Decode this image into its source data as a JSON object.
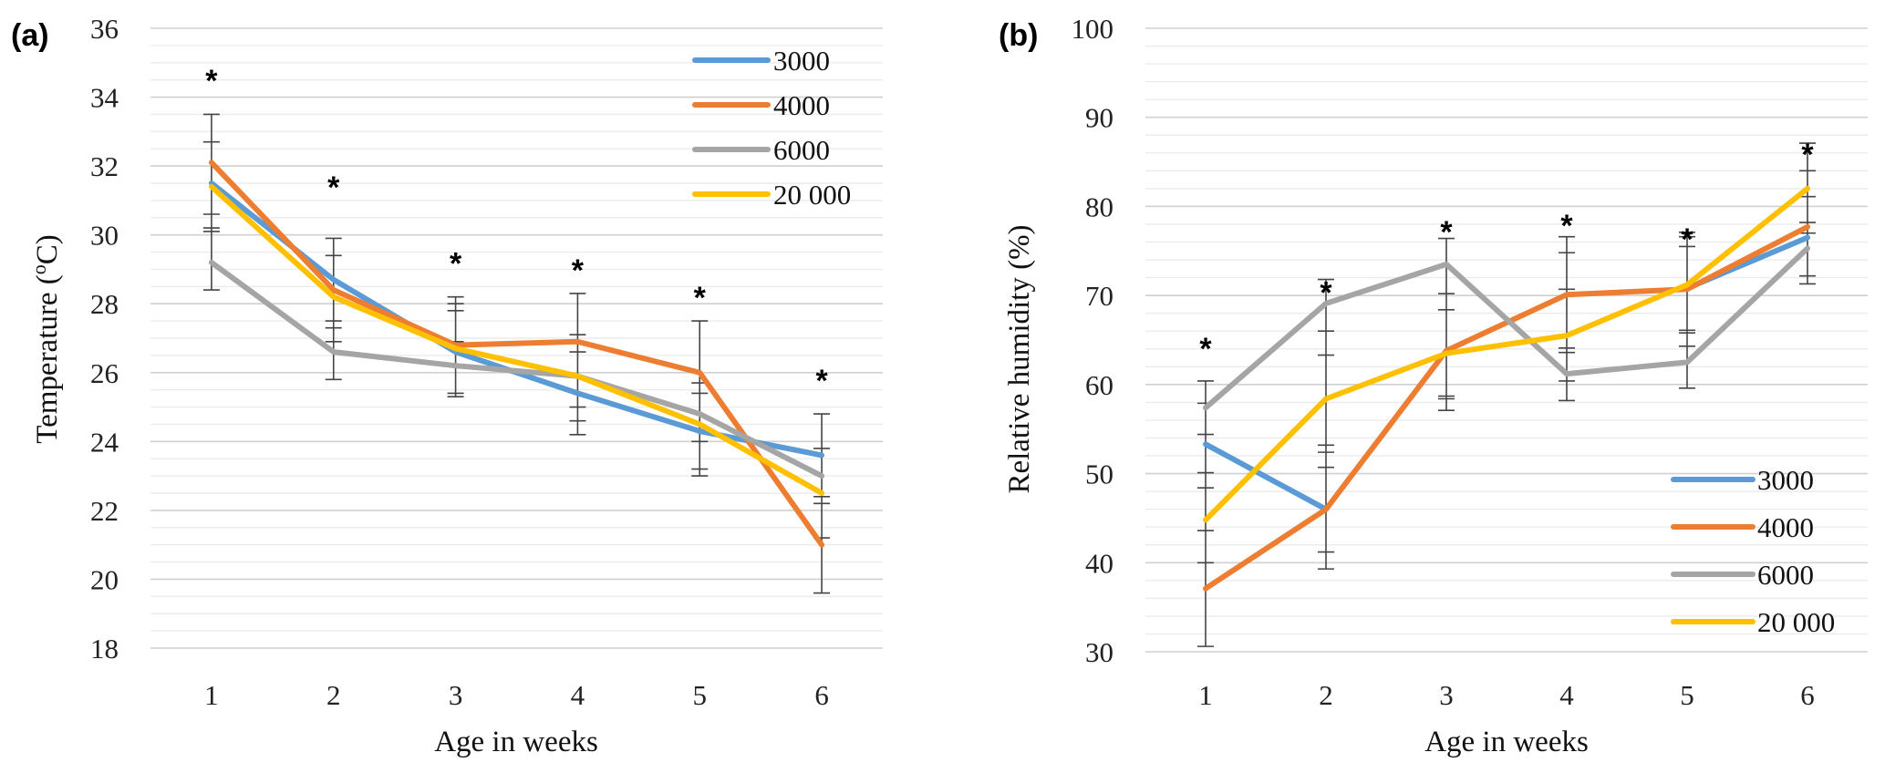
{
  "chart_data": [
    {
      "id": "a",
      "type": "line",
      "panel_label": "(a)",
      "title": "",
      "xlabel": "Age in weeks",
      "ylabel": "Temperature (ºC)",
      "ylabel_parts": [
        "Temperature (",
        "o",
        "C)"
      ],
      "categories": [
        "1",
        "2",
        "3",
        "4",
        "5",
        "6"
      ],
      "ylim": [
        18,
        36
      ],
      "yticks": [
        18,
        20,
        22,
        24,
        26,
        28,
        30,
        32,
        34,
        36
      ],
      "minor_step": 0.5,
      "grid": true,
      "legend_position": "top-right",
      "series": [
        {
          "name": "3000",
          "color": "#5B9BD5",
          "values": [
            31.5,
            28.7,
            26.6,
            25.4,
            24.3,
            23.6
          ]
        },
        {
          "name": "4000",
          "color": "#ED7D31",
          "values": [
            32.1,
            28.4,
            26.8,
            26.9,
            26.0,
            21.0
          ]
        },
        {
          "name": "6000",
          "color": "#A5A5A5",
          "values": [
            29.2,
            26.6,
            26.2,
            25.9,
            24.8,
            23.0
          ]
        },
        {
          "name": "20 000",
          "color": "#FFC000",
          "values": [
            31.4,
            28.2,
            26.7,
            25.9,
            24.5,
            22.5
          ]
        }
      ],
      "error_bar_caps": [
        [
          33.5,
          32.7,
          30.6,
          30.2,
          30.1,
          28.4
        ],
        [
          29.9,
          29.4,
          27.5,
          27.3,
          26.9,
          25.8
        ],
        [
          28.2,
          28.0,
          27.8,
          26.9,
          25.4,
          25.3
        ],
        [
          28.3,
          27.1,
          26.6,
          25.0,
          24.6,
          24.2
        ],
        [
          27.5,
          25.7,
          25.4,
          24.0,
          23.2,
          23.0
        ],
        [
          24.8,
          23.8,
          22.4,
          22.2,
          21.2,
          19.6
        ]
      ],
      "significance_markers": [
        {
          "category": "1",
          "label": "*",
          "y": 34.7
        },
        {
          "category": "2",
          "label": "*",
          "y": 31.6
        },
        {
          "category": "3",
          "label": "*",
          "y": 29.4
        },
        {
          "category": "4",
          "label": "*",
          "y": 29.2
        },
        {
          "category": "5",
          "label": "*",
          "y": 28.4
        },
        {
          "category": "6",
          "label": "*",
          "y": 26.0
        }
      ]
    },
    {
      "id": "b",
      "type": "line",
      "panel_label": "(b)",
      "title": "",
      "xlabel": "Age in weeks",
      "ylabel": "Relative humidity (%)",
      "ylabel_parts": [
        "Relative humidity (%)",
        "",
        ""
      ],
      "categories": [
        "1",
        "2",
        "3",
        "4",
        "5",
        "6"
      ],
      "ylim": [
        30,
        100
      ],
      "yticks": [
        30,
        40,
        50,
        60,
        70,
        80,
        90,
        100
      ],
      "minor_step": 2,
      "grid": true,
      "legend_position": "bottom-right",
      "series": [
        {
          "name": "3000",
          "color": "#5B9BD5",
          "values": [
            53.3,
            46.0,
            null,
            null,
            70.8,
            76.5
          ]
        },
        {
          "name": "4000",
          "color": "#ED7D31",
          "values": [
            37.1,
            46.0,
            63.8,
            70.1,
            70.7,
            77.7
          ]
        },
        {
          "name": "6000",
          "color": "#A5A5A5",
          "values": [
            57.4,
            69.1,
            73.5,
            61.2,
            62.5,
            75.3
          ]
        },
        {
          "name": "20 000",
          "color": "#FFC000",
          "values": [
            44.8,
            58.4,
            63.5,
            65.5,
            71.2,
            82.0
          ]
        }
      ],
      "error_bar_caps": [
        [
          60.4,
          57.9,
          54.4,
          50.1,
          48.4,
          43.6,
          40.0,
          30.6
        ],
        [
          71.8,
          66.0,
          63.3,
          53.2,
          52.4,
          50.7,
          41.2,
          39.3
        ],
        [
          76.4,
          70.2,
          68.4,
          58.7,
          58.4,
          57.1
        ],
        [
          76.6,
          74.8,
          70.7,
          64.1,
          63.6,
          60.4,
          58.2
        ],
        [
          77.1,
          76.6,
          75.5,
          66.1,
          65.8,
          64.3,
          59.6
        ],
        [
          87.1,
          84.0,
          81.1,
          78.2,
          77.0,
          72.2,
          71.3
        ]
      ],
      "significance_markers": [
        {
          "category": "1",
          "label": "*",
          "y": 64.9
        },
        {
          "category": "2",
          "label": "*",
          "y": 71.2
        },
        {
          "category": "3",
          "label": "*",
          "y": 78.0
        },
        {
          "category": "4",
          "label": "*",
          "y": 78.7
        },
        {
          "category": "5",
          "label": "*",
          "y": 77.2
        },
        {
          "category": "6",
          "label": "*",
          "y": 86.7
        }
      ]
    }
  ]
}
